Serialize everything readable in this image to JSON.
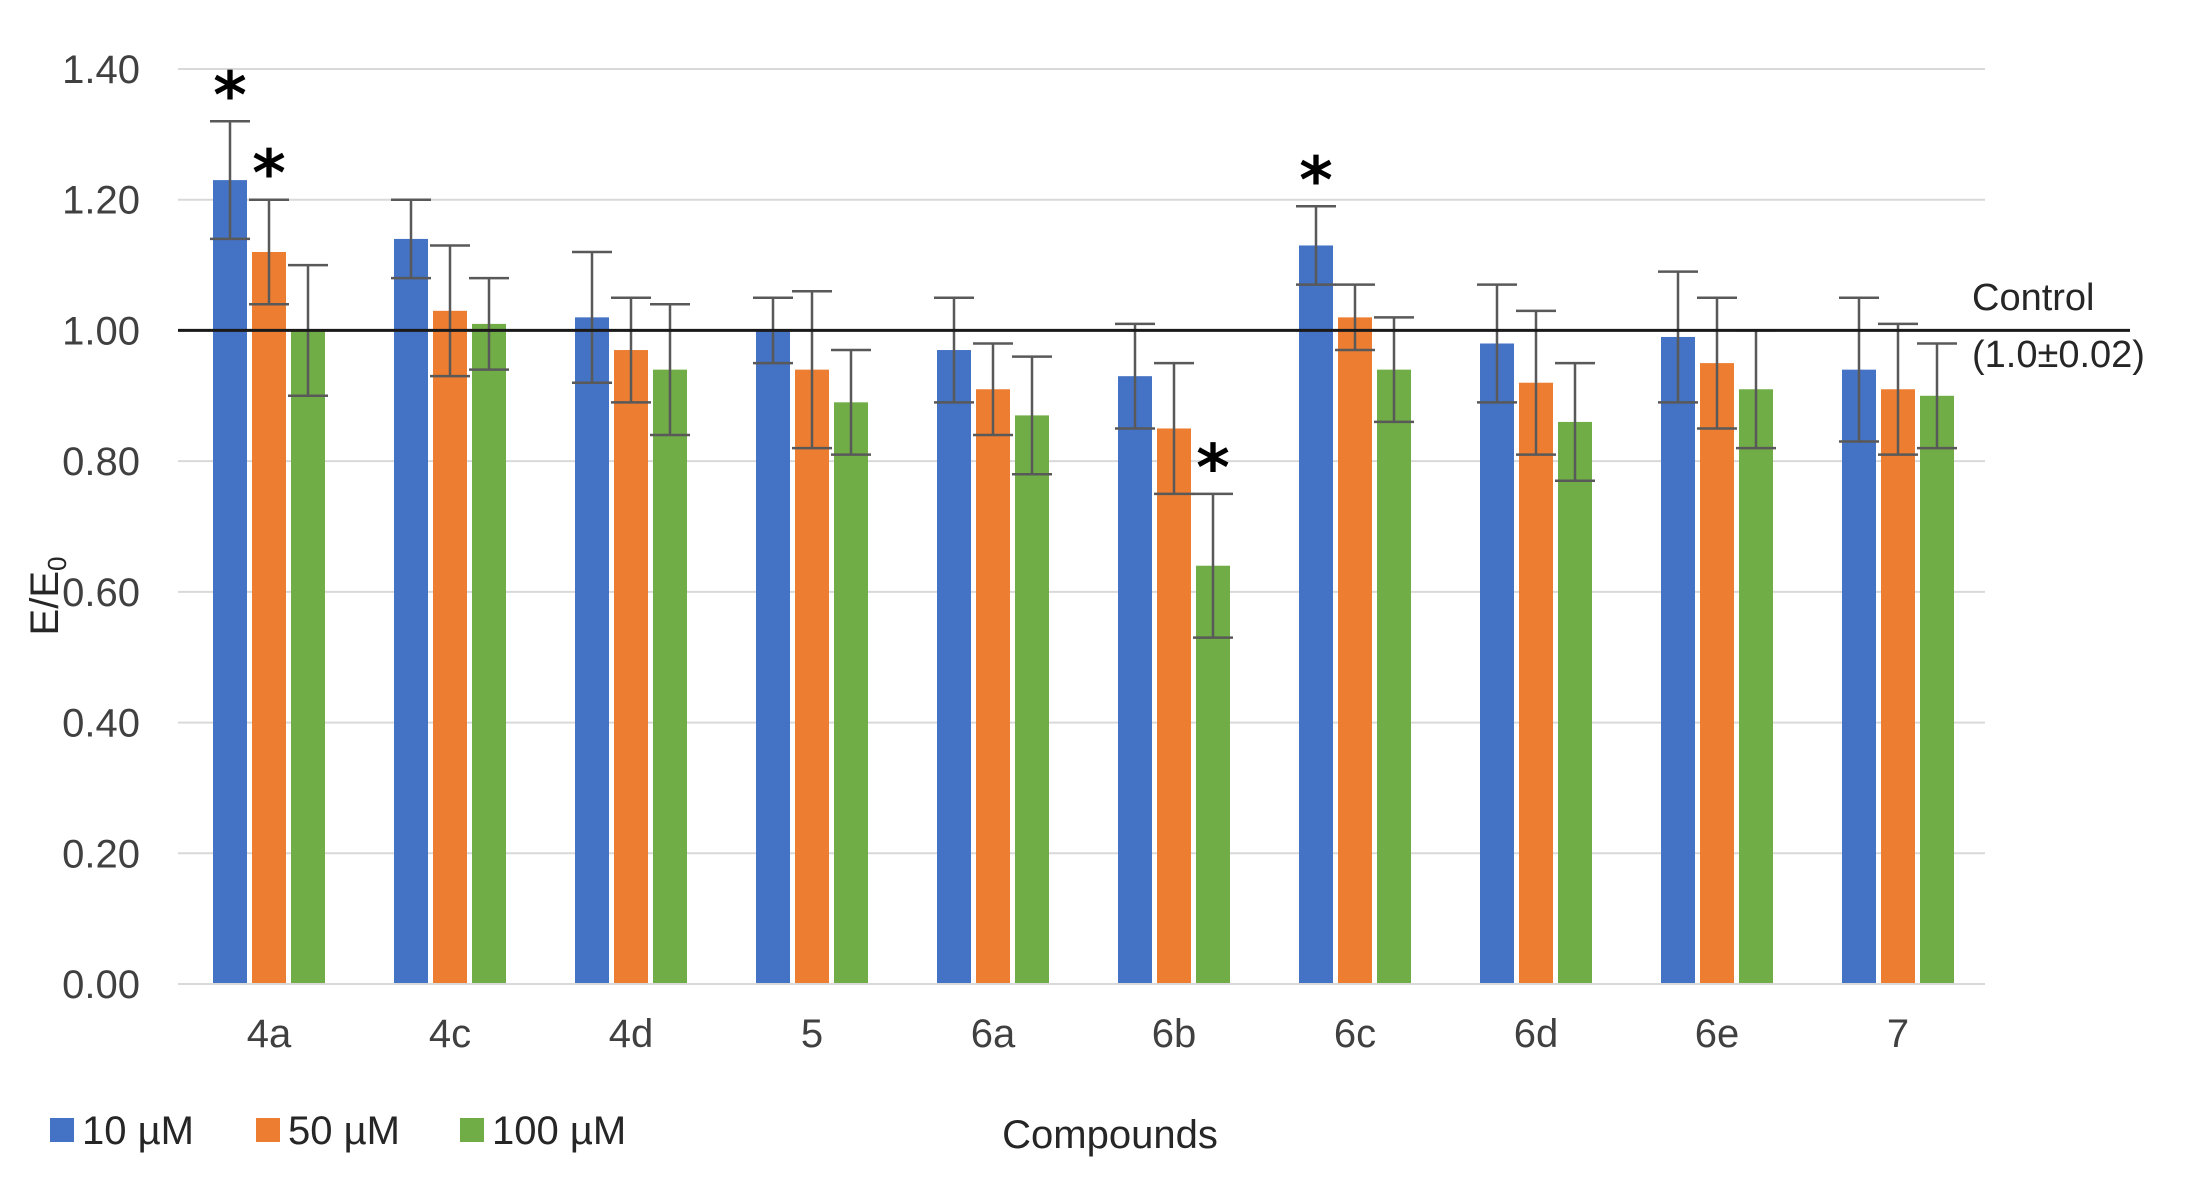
{
  "chart_data": {
    "type": "bar",
    "title": "",
    "xlabel": "Compounds",
    "ylabel_main": "E/E",
    "ylabel_sub": "0",
    "ylim": [
      0,
      1.4
    ],
    "yticks": [
      "0.00",
      "0.20",
      "0.40",
      "0.60",
      "0.80",
      "1.00",
      "1.20",
      "1.40"
    ],
    "categories": [
      "4a",
      "4c",
      "4d",
      "5",
      "6a",
      "6b",
      "6c",
      "6d",
      "6e",
      "7"
    ],
    "series": [
      {
        "name": "10 µM",
        "color": "#4472c4",
        "values": [
          1.23,
          1.14,
          1.02,
          1.0,
          0.97,
          0.93,
          1.13,
          0.98,
          0.99,
          0.94
        ],
        "errors": [
          0.09,
          0.06,
          0.1,
          0.05,
          0.08,
          0.08,
          0.06,
          0.09,
          0.1,
          0.11
        ]
      },
      {
        "name": "50 µM",
        "color": "#ed7d31",
        "values": [
          1.12,
          1.03,
          0.97,
          0.94,
          0.91,
          0.85,
          1.02,
          0.92,
          0.95,
          0.91
        ],
        "errors": [
          0.08,
          0.1,
          0.08,
          0.12,
          0.07,
          0.1,
          0.05,
          0.11,
          0.1,
          0.1
        ]
      },
      {
        "name": "100 µM",
        "color": "#70ad47",
        "values": [
          1.0,
          1.01,
          0.94,
          0.89,
          0.87,
          0.64,
          0.94,
          0.86,
          0.91,
          0.9
        ],
        "errors": [
          0.1,
          0.07,
          0.1,
          0.08,
          0.09,
          0.11,
          0.08,
          0.09,
          0.09,
          0.08
        ]
      }
    ],
    "significance": [
      {
        "category": "4a",
        "series": 0,
        "label": "*"
      },
      {
        "category": "4a",
        "series": 1,
        "label": "*"
      },
      {
        "category": "6b",
        "series": 2,
        "label": "*"
      },
      {
        "category": "6c",
        "series": 0,
        "label": "*"
      }
    ],
    "control": {
      "value": 1.0,
      "label_line1": "Control",
      "label_line2": "(1.0±0.02)"
    },
    "legend_position": "bottom-left",
    "grid": true
  }
}
